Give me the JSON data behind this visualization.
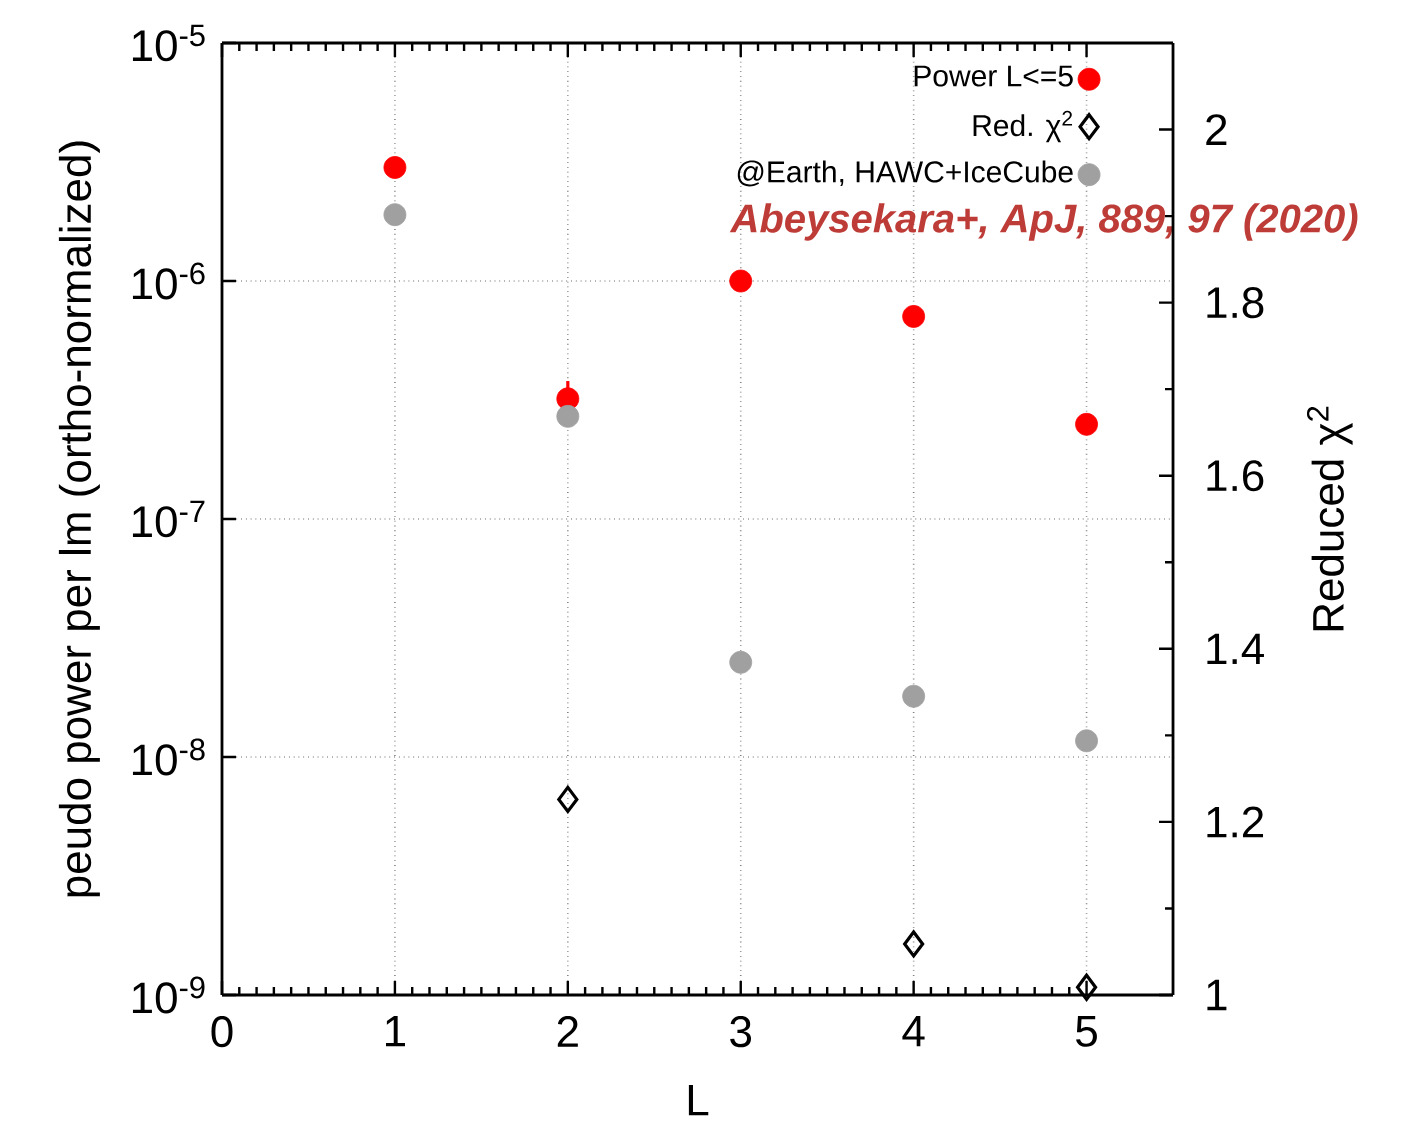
{
  "chart_data": {
    "type": "scatter",
    "xlabel": "L",
    "ylabel": "peudo power per lm (ortho-normalized)",
    "y2label": "Reduced χ$^{2}$",
    "x": [
      1,
      2,
      3,
      4,
      5
    ],
    "series": [
      {
        "name": "Power L<=5",
        "color": "#ff0000",
        "marker": "circle",
        "values": [
          3e-06,
          3.2e-07,
          1e-06,
          7.1e-07,
          2.5e-07
        ],
        "errors": [
          null,
          [
            3.2e-07,
            3.8e-07
          ],
          null,
          null,
          null
        ]
      },
      {
        "name": "Red. χ$^{2}$",
        "color": "#000000",
        "marker": "diamond",
        "axis": "y2",
        "x": [
          2,
          4,
          5
        ],
        "values": [
          1.226,
          1.059,
          1.009
        ]
      },
      {
        "name": "@Earth, HAWC+IceCube",
        "color": "#a0a0a0",
        "marker": "circle",
        "values": [
          1.9e-06,
          2.7e-07,
          2.5e-08,
          1.8e-08,
          1.17e-08
        ]
      }
    ],
    "xlim": [
      0,
      5.5
    ],
    "xticks": [
      0,
      1,
      2,
      3,
      4,
      5
    ],
    "ylim": [
      1e-09,
      1e-05
    ],
    "log": "y",
    "yticks": [
      {
        "value": 1e-09,
        "label": "10$^{-9}$"
      },
      {
        "value": 1e-08,
        "label": "10$^{-8}$"
      },
      {
        "value": 1e-07,
        "label": "10$^{-7}$"
      },
      {
        "value": 1e-06,
        "label": "10$^{-6}$"
      },
      {
        "value": 1e-05,
        "label": "10$^{-5}$"
      }
    ],
    "y2lim": [
      1,
      2.1
    ],
    "y2ticks": [
      1,
      1.2,
      1.4,
      1.6,
      1.8,
      2
    ],
    "grid": true,
    "legend": "top right",
    "annotations": [
      "Abeysekara+, ApJ, 889, 97 (2020)"
    ]
  }
}
